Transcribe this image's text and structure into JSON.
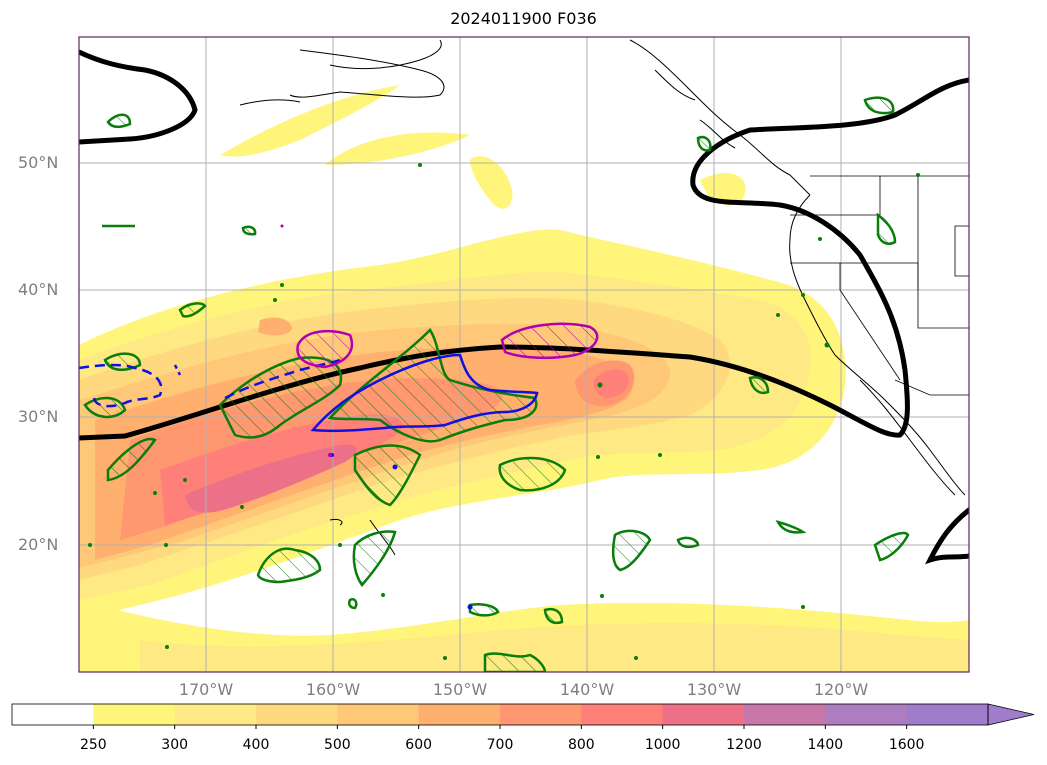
{
  "title": "2024011900 F036",
  "lat_labels": [
    "50°N",
    "40°N",
    "30°N",
    "20°N"
  ],
  "lon_labels": [
    "170°W",
    "160°W",
    "150°W",
    "140°W",
    "130°W",
    "120°W"
  ],
  "colorbar": {
    "ticks": [
      "250",
      "300",
      "400",
      "500",
      "600",
      "700",
      "800",
      "1000",
      "1200",
      "1400",
      "1600"
    ],
    "colors": [
      "#ffffff",
      "#fff57a",
      "#ffe985",
      "#ffd97f",
      "#ffc878",
      "#ffb06e",
      "#ff9870",
      "#ff8078",
      "#ec7088",
      "#c878a8",
      "#ae7cc0",
      "#a07ccc"
    ],
    "extend": "max"
  },
  "colors": {
    "frame": "#5a2a5a",
    "jet_axis": "#000000",
    "green_contour": "#0a7d0a",
    "blue_contour": "#1010e0",
    "magenta_contour": "#b000b0",
    "grid": "#b0b0b0",
    "coast": "#000000"
  }
}
